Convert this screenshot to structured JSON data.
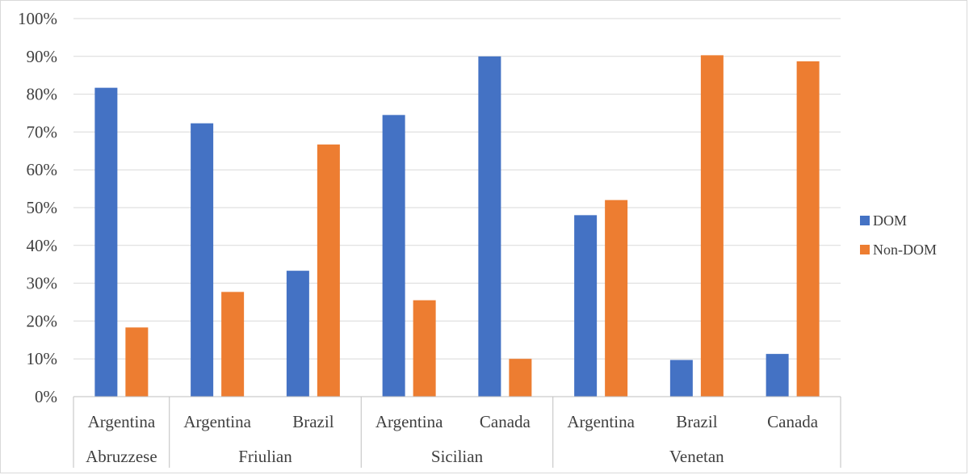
{
  "chart_data": {
    "type": "bar",
    "categories": [
      {
        "label": "Argentina",
        "group": "Abruzzese"
      },
      {
        "label": "Argentina",
        "group": "Friulian"
      },
      {
        "label": "Brazil",
        "group": "Friulian"
      },
      {
        "label": "Argentina",
        "group": "Sicilian"
      },
      {
        "label": "Canada",
        "group": "Sicilian"
      },
      {
        "label": "Argentina",
        "group": "Venetan"
      },
      {
        "label": "Brazil",
        "group": "Venetan"
      },
      {
        "label": "Canada",
        "group": "Venetan"
      }
    ],
    "groups": [
      "Abruzzese",
      "Friulian",
      "Sicilian",
      "Venetan"
    ],
    "series": [
      {
        "name": "DOM",
        "color": "#4472c4",
        "values": [
          81.7,
          72.3,
          33.3,
          74.5,
          90.0,
          48.0,
          9.7,
          11.3
        ]
      },
      {
        "name": "Non-DOM",
        "color": "#ed7d31",
        "values": [
          18.3,
          27.7,
          66.7,
          25.5,
          10.0,
          52.0,
          90.3,
          88.7
        ]
      }
    ],
    "ylim": [
      0,
      100
    ],
    "yticks": [
      "0%",
      "10%",
      "20%",
      "30%",
      "40%",
      "50%",
      "60%",
      "70%",
      "80%",
      "90%",
      "100%"
    ],
    "grid": true,
    "legend_position": "right",
    "title": "",
    "xlabel": "",
    "ylabel": ""
  }
}
